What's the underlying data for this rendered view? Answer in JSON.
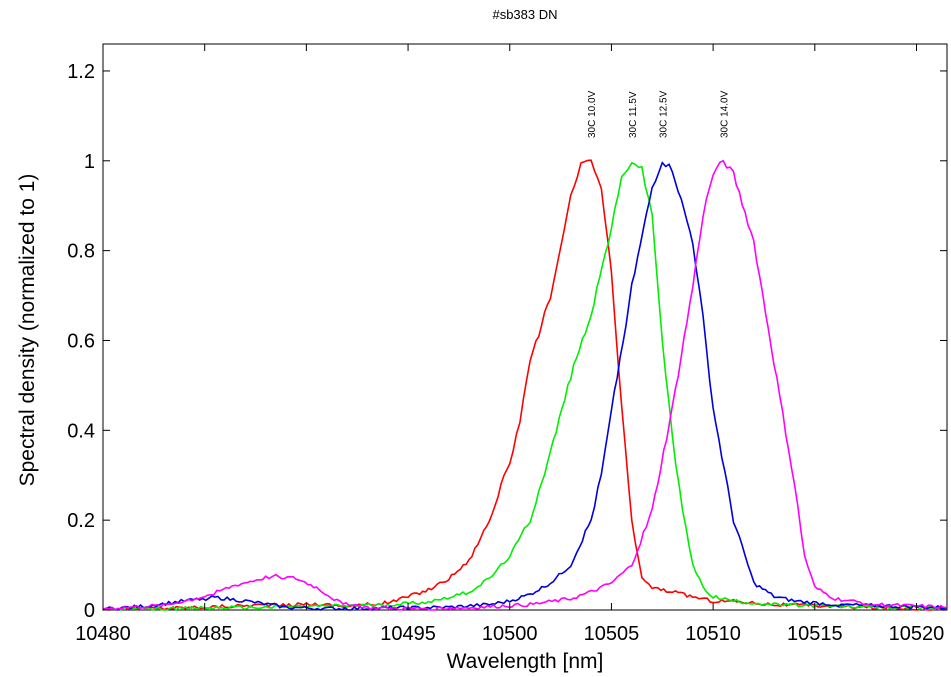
{
  "chart_data": {
    "type": "line",
    "title": "#sb383 DN",
    "xlabel": "Wavelength [nm]",
    "ylabel": "Spectral density (normalized to 1)",
    "xlim": [
      10480,
      10521.5
    ],
    "ylim": [
      0,
      1.26
    ],
    "x_ticks": [
      10480,
      10485,
      10490,
      10495,
      10500,
      10505,
      10510,
      10515,
      10520
    ],
    "y_ticks": [
      0,
      0.2,
      0.4,
      0.6,
      0.8,
      1,
      1.2
    ],
    "y_tick_labels": [
      "0",
      "0.2",
      "0.4",
      "0.6",
      "0.8",
      "1",
      "1.2"
    ],
    "grid": false,
    "legend": "none",
    "series": [
      {
        "name": "30C 10.0V",
        "color": "#ff0000",
        "points": [
          [
            10480,
            0.003
          ],
          [
            10483,
            0.004
          ],
          [
            10486,
            0.008
          ],
          [
            10488,
            0.012
          ],
          [
            10489,
            0.01
          ],
          [
            10490,
            0.014
          ],
          [
            10491,
            0.012
          ],
          [
            10492,
            0.008
          ],
          [
            10493,
            0.012
          ],
          [
            10494,
            0.016
          ],
          [
            10495,
            0.03
          ],
          [
            10496,
            0.045
          ],
          [
            10497,
            0.07
          ],
          [
            10498,
            0.11
          ],
          [
            10499,
            0.2
          ],
          [
            10500,
            0.33
          ],
          [
            10500.5,
            0.42
          ],
          [
            10501,
            0.55
          ],
          [
            10502,
            0.7
          ],
          [
            10502.5,
            0.8
          ],
          [
            10503,
            0.92
          ],
          [
            10503.5,
            0.99
          ],
          [
            10504,
            1.0
          ],
          [
            10504.5,
            0.94
          ],
          [
            10505,
            0.75
          ],
          [
            10505.5,
            0.45
          ],
          [
            10506,
            0.2
          ],
          [
            10506.5,
            0.07
          ],
          [
            10507,
            0.05
          ],
          [
            10508,
            0.04
          ],
          [
            10509,
            0.03
          ],
          [
            10510,
            0.02
          ],
          [
            10511,
            0.02
          ],
          [
            10513,
            0.012
          ],
          [
            10515,
            0.01
          ],
          [
            10518,
            0.005
          ],
          [
            10521.5,
            0.003
          ]
        ]
      },
      {
        "name": "30C 11.5V",
        "color": "#00ee00",
        "points": [
          [
            10480,
            0.002
          ],
          [
            10483,
            0.003
          ],
          [
            10486,
            0.005
          ],
          [
            10488,
            0.006
          ],
          [
            10490,
            0.008
          ],
          [
            10492,
            0.01
          ],
          [
            10494,
            0.012
          ],
          [
            10496,
            0.018
          ],
          [
            10498,
            0.04
          ],
          [
            10499,
            0.07
          ],
          [
            10500,
            0.12
          ],
          [
            10501,
            0.2
          ],
          [
            10502,
            0.35
          ],
          [
            10503,
            0.52
          ],
          [
            10504,
            0.66
          ],
          [
            10505,
            0.85
          ],
          [
            10505.5,
            0.96
          ],
          [
            10506,
            1.0
          ],
          [
            10506.5,
            0.98
          ],
          [
            10507,
            0.88
          ],
          [
            10507.5,
            0.6
          ],
          [
            10508,
            0.38
          ],
          [
            10508.5,
            0.22
          ],
          [
            10509,
            0.1
          ],
          [
            10509.5,
            0.05
          ],
          [
            10510,
            0.03
          ],
          [
            10511,
            0.02
          ],
          [
            10513,
            0.012
          ],
          [
            10516,
            0.008
          ],
          [
            10521.5,
            0.004
          ]
        ]
      },
      {
        "name": "30C 12.5V",
        "color": "#0000dd",
        "points": [
          [
            10480,
            0.002
          ],
          [
            10482,
            0.008
          ],
          [
            10484,
            0.02
          ],
          [
            10485.5,
            0.028
          ],
          [
            10487,
            0.02
          ],
          [
            10489,
            0.006
          ],
          [
            10491,
            0.003
          ],
          [
            10494,
            0.004
          ],
          [
            10497,
            0.006
          ],
          [
            10499,
            0.012
          ],
          [
            10500,
            0.02
          ],
          [
            10501,
            0.035
          ],
          [
            10502,
            0.06
          ],
          [
            10503,
            0.1
          ],
          [
            10504,
            0.2
          ],
          [
            10504.5,
            0.3
          ],
          [
            10505,
            0.44
          ],
          [
            10506,
            0.72
          ],
          [
            10507,
            0.94
          ],
          [
            10507.5,
            1.0
          ],
          [
            10508,
            0.98
          ],
          [
            10509,
            0.82
          ],
          [
            10509.5,
            0.65
          ],
          [
            10510,
            0.45
          ],
          [
            10511,
            0.2
          ],
          [
            10512,
            0.06
          ],
          [
            10513,
            0.03
          ],
          [
            10514,
            0.02
          ],
          [
            10516,
            0.012
          ],
          [
            10521.5,
            0.005
          ]
        ]
      },
      {
        "name": "30C 14.0V",
        "color": "#ff00ff",
        "points": [
          [
            10480,
            0.003
          ],
          [
            10483,
            0.01
          ],
          [
            10485,
            0.03
          ],
          [
            10486.5,
            0.055
          ],
          [
            10488,
            0.072
          ],
          [
            10488.5,
            0.075
          ],
          [
            10489.5,
            0.07
          ],
          [
            10490.5,
            0.05
          ],
          [
            10491.5,
            0.02
          ],
          [
            10493,
            0.005
          ],
          [
            10495,
            0.003
          ],
          [
            10498,
            0.005
          ],
          [
            10501,
            0.012
          ],
          [
            10503,
            0.025
          ],
          [
            10504,
            0.04
          ],
          [
            10505,
            0.06
          ],
          [
            10506,
            0.1
          ],
          [
            10507,
            0.22
          ],
          [
            10508,
            0.45
          ],
          [
            10509,
            0.72
          ],
          [
            10509.5,
            0.88
          ],
          [
            10510,
            0.97
          ],
          [
            10510.5,
            1.0
          ],
          [
            10511,
            0.97
          ],
          [
            10512,
            0.82
          ],
          [
            10513,
            0.55
          ],
          [
            10514,
            0.28
          ],
          [
            10514.5,
            0.12
          ],
          [
            10515,
            0.05
          ],
          [
            10516,
            0.025
          ],
          [
            10518,
            0.012
          ],
          [
            10521.5,
            0.006
          ]
        ]
      }
    ]
  }
}
